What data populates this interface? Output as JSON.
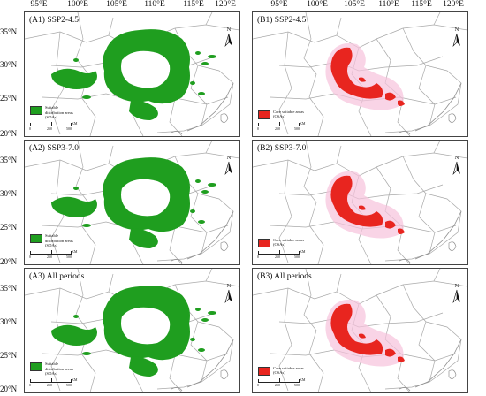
{
  "colors": {
    "sda": "#1f9e1f",
    "csa": "#e8251f",
    "csa_halo": "#f6c2dc",
    "boundary": "#a9a9a9",
    "frame": "#444444"
  },
  "longitude_labels": [
    "95°E",
    "100°E",
    "105°E",
    "110°E",
    "115°E",
    "120°E"
  ],
  "latitude_labels": [
    "35°N",
    "30°N",
    "25°N",
    "20°N"
  ],
  "icons": {
    "north": "north-arrow-icon"
  },
  "panels": [
    {
      "title": "(A1) SSP2-4.5",
      "kind": "sda",
      "legend": "Suitable distribution areas (SDAs)",
      "scale": {
        "ticks": [
          "0",
          "250",
          "500"
        ],
        "unit": "KM"
      },
      "north_label": "N"
    },
    {
      "title": "(B1) SSP2-4.5",
      "kind": "csa",
      "legend": "Core suitable areas (CSAs)",
      "scale": {
        "ticks": [
          "0",
          "250",
          "500"
        ],
        "unit": "KM"
      },
      "north_label": "N"
    },
    {
      "title": "(A2) SSP3-7.0",
      "kind": "sda",
      "legend": "Suitable distribution areas (SDAs)",
      "scale": {
        "ticks": [
          "0",
          "250",
          "500"
        ],
        "unit": "KM"
      },
      "north_label": "N"
    },
    {
      "title": "(B2) SSP3-7.0",
      "kind": "csa",
      "legend": "Core suitable areas (CSAs)",
      "scale": {
        "ticks": [
          "0",
          "250",
          "500"
        ],
        "unit": "KM"
      },
      "north_label": "N"
    },
    {
      "title": "(A3) All periods",
      "kind": "sda",
      "legend": "Suitable distribution areas (SDAs)",
      "scale": {
        "ticks": [
          "0",
          "250",
          "500"
        ],
        "unit": "KM"
      },
      "north_label": "N"
    },
    {
      "title": "(B3) All periods",
      "kind": "csa",
      "legend": "Core suitable areas (CSAs)",
      "scale": {
        "ticks": [
          "0",
          "250",
          "500"
        ],
        "unit": "KM"
      },
      "north_label": "N"
    }
  ]
}
